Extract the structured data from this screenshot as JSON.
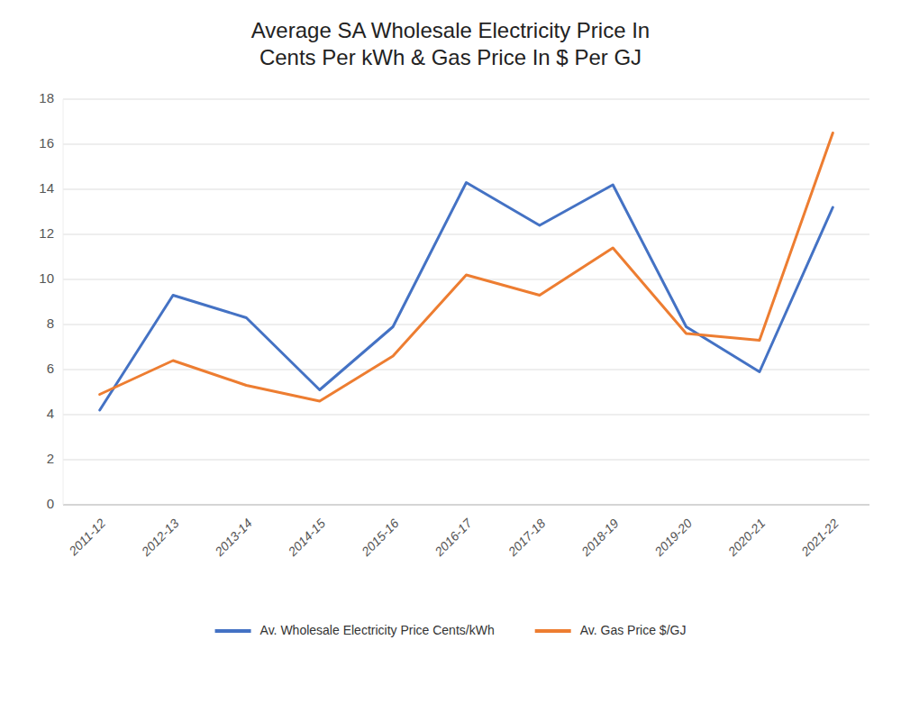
{
  "chart_data": {
    "type": "line",
    "title": "Average SA Wholesale Electricity Price In\nCents Per kWh & Gas Price In $ Per GJ",
    "categories": [
      "2011-12",
      "2012-13",
      "2013-14",
      "2014-15",
      "2015-16",
      "2016-17",
      "2017-18",
      "2018-19",
      "2019-20",
      "2020-21",
      "2021-22"
    ],
    "series": [
      {
        "name": "Av. Wholesale Electricity Price Cents/kWh",
        "color": "#4472C4",
        "values": [
          4.2,
          9.3,
          8.3,
          5.1,
          7.9,
          14.3,
          12.4,
          14.2,
          7.9,
          5.9,
          13.2
        ]
      },
      {
        "name": "Av. Gas Price $/GJ",
        "color": "#ED7D31",
        "values": [
          4.9,
          6.4,
          5.3,
          4.6,
          6.6,
          10.2,
          9.3,
          11.4,
          7.6,
          7.3,
          16.5
        ]
      }
    ],
    "ylim": [
      0,
      18
    ],
    "yticks": [
      0,
      2,
      4,
      6,
      8,
      10,
      12,
      14,
      16,
      18
    ],
    "grid": true,
    "legend": "bottom"
  }
}
